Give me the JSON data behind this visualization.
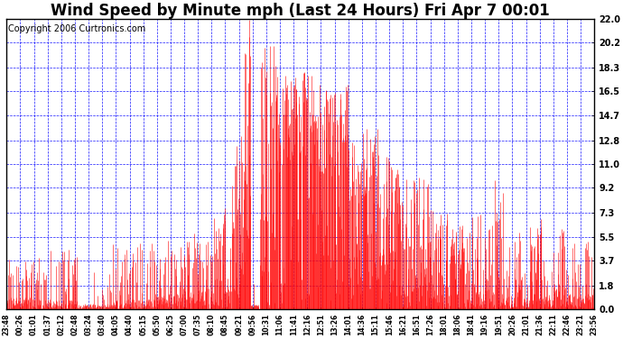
{
  "title": "Wind Speed by Minute mph (Last 24 Hours) Fri Apr 7 00:01",
  "copyright": "Copyright 2006 Curtronics.com",
  "yticks": [
    0.0,
    1.8,
    3.7,
    5.5,
    7.3,
    9.2,
    11.0,
    12.8,
    14.7,
    16.5,
    18.3,
    20.2,
    22.0
  ],
  "ylim": [
    0.0,
    22.0
  ],
  "xtick_labels": [
    "23:48",
    "00:26",
    "01:01",
    "01:37",
    "02:12",
    "02:48",
    "03:24",
    "03:40",
    "04:05",
    "04:40",
    "05:15",
    "05:50",
    "06:25",
    "07:00",
    "07:35",
    "08:10",
    "08:45",
    "09:21",
    "09:56",
    "10:31",
    "11:06",
    "11:41",
    "12:16",
    "12:51",
    "13:26",
    "14:01",
    "14:36",
    "15:11",
    "15:46",
    "16:21",
    "16:51",
    "17:26",
    "18:01",
    "18:06",
    "18:41",
    "19:16",
    "19:51",
    "20:26",
    "21:01",
    "21:36",
    "22:11",
    "22:46",
    "23:21",
    "23:56"
  ],
  "bg_color": "#ffffff",
  "plot_bg": "#ffffff",
  "bar_color": "#ff0000",
  "grid_color": "#0000ff",
  "title_fontsize": 12,
  "copyright_fontsize": 7
}
